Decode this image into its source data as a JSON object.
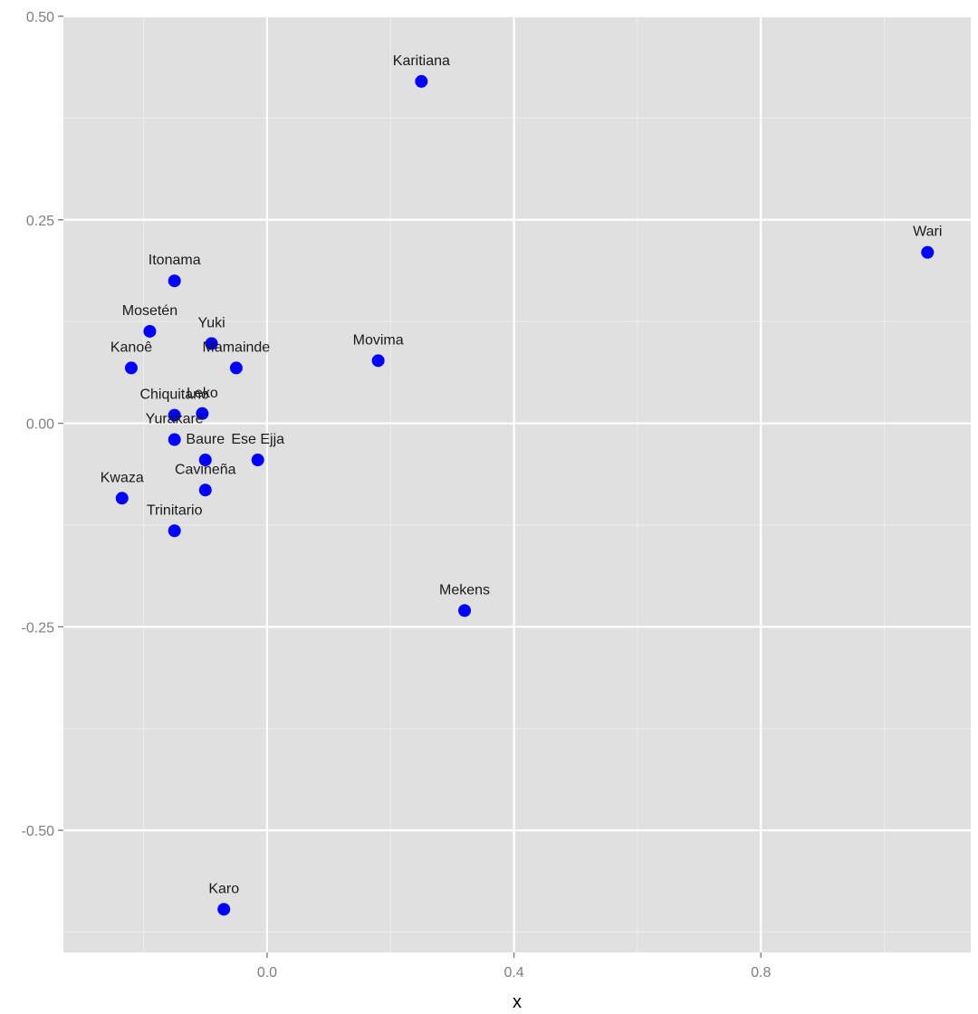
{
  "chart_data": {
    "type": "scatter",
    "title": "",
    "xlabel": "x",
    "ylabel": "",
    "xlim": [
      -0.33,
      1.14
    ],
    "ylim": [
      -0.65,
      0.5
    ],
    "x_ticks": [
      0.0,
      0.4,
      0.8
    ],
    "x_tick_labels": [
      "0.0",
      "0.4",
      "0.8"
    ],
    "y_ticks": [
      0.5,
      0.25,
      0.0,
      -0.25,
      -0.5
    ],
    "y_tick_labels": [
      "0.50",
      "0.25",
      "0.00",
      "-0.25",
      "-0.50"
    ],
    "grid": true,
    "background": "#e0e0e0",
    "grid_color": "#ffffff",
    "point_color": "#0000ff",
    "points": [
      {
        "label": "Karitiana",
        "x": 0.25,
        "y": 0.42
      },
      {
        "label": "Wari",
        "x": 1.07,
        "y": 0.21
      },
      {
        "label": "Itonama",
        "x": -0.15,
        "y": 0.175
      },
      {
        "label": "Mosetén",
        "x": -0.19,
        "y": 0.113
      },
      {
        "label": "Yuki",
        "x": -0.09,
        "y": 0.098
      },
      {
        "label": "Mamainde",
        "x": -0.05,
        "y": 0.068
      },
      {
        "label": "Kanoê",
        "x": -0.22,
        "y": 0.068
      },
      {
        "label": "Movima",
        "x": 0.18,
        "y": 0.077
      },
      {
        "label": "Chiquitano",
        "x": -0.15,
        "y": 0.01
      },
      {
        "label": "Leko",
        "x": -0.105,
        "y": 0.012
      },
      {
        "label": "Yurakare",
        "x": -0.15,
        "y": -0.02
      },
      {
        "label": "Baure",
        "x": -0.1,
        "y": -0.045
      },
      {
        "label": "Ese Ejja",
        "x": -0.015,
        "y": -0.045
      },
      {
        "label": "Cavineña",
        "x": -0.1,
        "y": -0.082
      },
      {
        "label": "Kwaza",
        "x": -0.235,
        "y": -0.092
      },
      {
        "label": "Trinitario",
        "x": -0.15,
        "y": -0.132
      },
      {
        "label": "Mekens",
        "x": 0.32,
        "y": -0.23
      },
      {
        "label": "Karo",
        "x": -0.07,
        "y": -0.597
      }
    ]
  }
}
